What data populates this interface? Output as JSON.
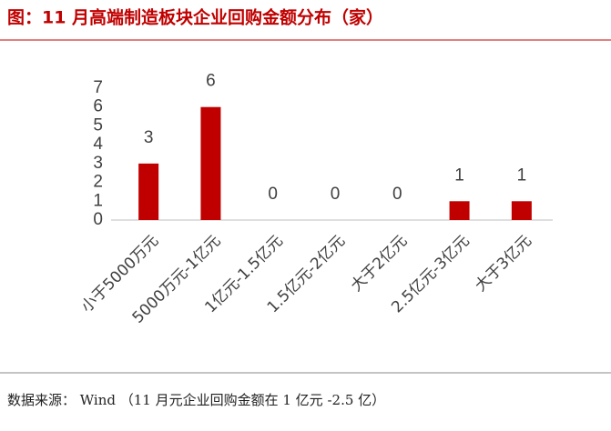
{
  "title": "图：11 月高端制造板块企业回购金额分布（家）",
  "chart_data": {
    "type": "bar",
    "categories": [
      "小于5000万元",
      "5000万元-1亿元",
      "1亿元-1.5亿元",
      "1.5亿元-2亿元",
      "大于2亿元",
      "2.5亿元-3亿元",
      "大于3亿元"
    ],
    "values": [
      3,
      6,
      0,
      0,
      0,
      1,
      1
    ],
    "color": "#c00000",
    "ylim": [
      0,
      7
    ],
    "yticks": [
      0,
      1,
      2,
      3,
      4,
      5,
      6,
      7
    ],
    "grid": false
  },
  "source": "数据来源： Wind （11 月元企业回购金额在 1 亿元 -2.5 亿）"
}
